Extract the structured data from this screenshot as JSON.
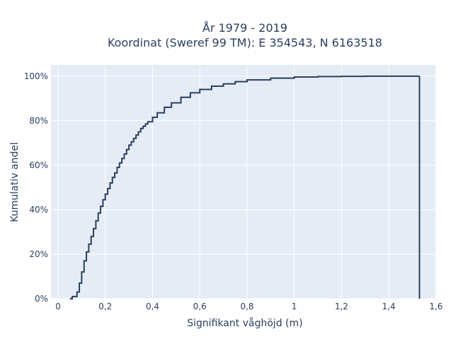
{
  "chart_data": {
    "type": "line",
    "subtype": "ecdf-step",
    "title_lines": [
      "År 1979 - 2019",
      "Koordinat (Sweref 99 TM): E 354543, N 6163518"
    ],
    "xlabel": "Signifikant våghöjd (m)",
    "ylabel": "Kumulativ andel",
    "xlim": [
      -0.03,
      1.6
    ],
    "ylim": [
      0,
      1.05
    ],
    "x_ticks": [
      0,
      0.2,
      0.4,
      0.6,
      0.8,
      1.0,
      1.2,
      1.4,
      1.6
    ],
    "x_tick_labels": [
      "0",
      "0,2",
      "0,4",
      "0,6",
      "0,8",
      "1",
      "1,2",
      "1,4",
      "1,6"
    ],
    "y_ticks": [
      0,
      0.2,
      0.4,
      0.6,
      0.8,
      1.0
    ],
    "y_tick_labels": [
      "0%",
      "20%",
      "40%",
      "60%",
      "80%",
      "100%"
    ],
    "grid": true,
    "colors": {
      "line": "#2a3f5f",
      "plot_bg": "#e5ecf6",
      "grid": "#ffffff",
      "text": "#2a3f5f"
    },
    "series": [
      {
        "x": [
          0.05,
          0.06,
          0.08,
          0.09,
          0.1,
          0.11,
          0.12,
          0.13,
          0.14,
          0.15,
          0.16,
          0.17,
          0.18,
          0.19,
          0.2,
          0.21,
          0.22,
          0.23,
          0.24,
          0.25,
          0.26,
          0.27,
          0.28,
          0.29,
          0.3,
          0.31,
          0.32,
          0.33,
          0.34,
          0.35,
          0.36,
          0.37,
          0.38,
          0.4,
          0.42,
          0.45,
          0.48,
          0.52,
          0.56,
          0.6,
          0.65,
          0.7,
          0.75,
          0.8,
          0.9,
          1.0,
          1.1,
          1.2,
          1.3,
          1.4,
          1.53
        ],
        "y": [
          0.0,
          0.01,
          0.03,
          0.07,
          0.12,
          0.17,
          0.21,
          0.245,
          0.28,
          0.315,
          0.35,
          0.385,
          0.415,
          0.445,
          0.47,
          0.495,
          0.52,
          0.545,
          0.565,
          0.59,
          0.61,
          0.63,
          0.65,
          0.67,
          0.69,
          0.705,
          0.72,
          0.735,
          0.75,
          0.765,
          0.775,
          0.785,
          0.795,
          0.815,
          0.835,
          0.86,
          0.88,
          0.905,
          0.925,
          0.94,
          0.955,
          0.965,
          0.975,
          0.983,
          0.991,
          0.996,
          0.998,
          0.999,
          0.9995,
          0.9998,
          1.0
        ]
      }
    ]
  }
}
